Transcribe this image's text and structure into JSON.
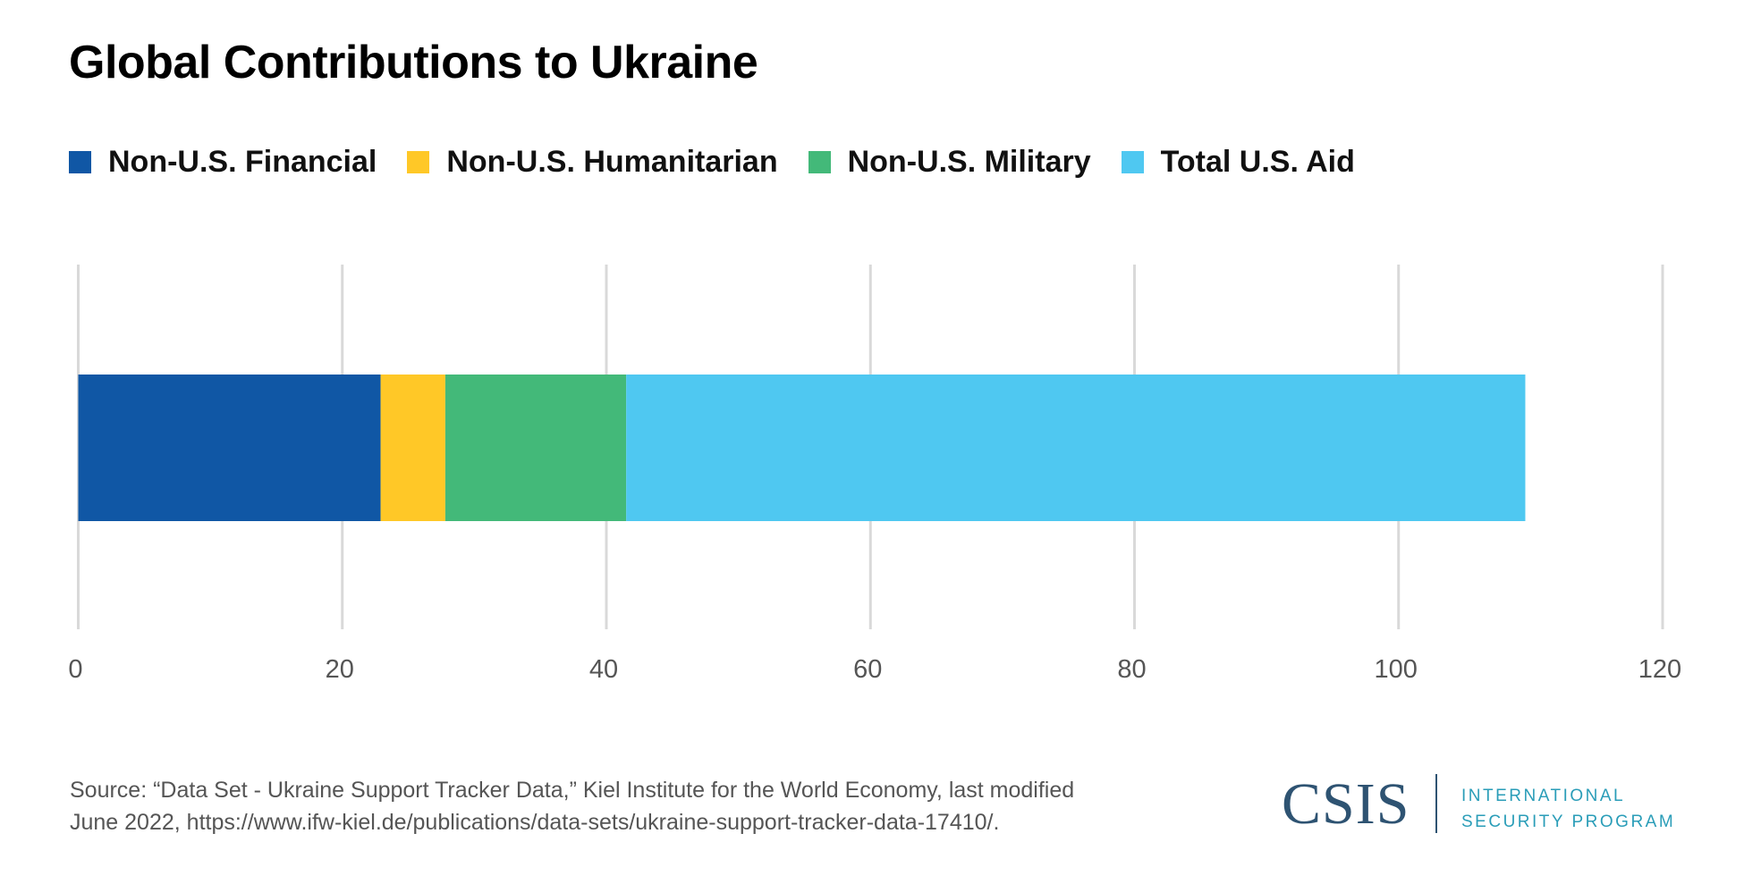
{
  "chart_data": {
    "type": "bar",
    "orientation": "horizontal",
    "stacked": true,
    "title": "Global Contributions to Ukraine",
    "categories": [
      ""
    ],
    "series": [
      {
        "name": "Non-U.S. Financial",
        "values": [
          22.9
        ],
        "color": "#1057a5"
      },
      {
        "name": "Non-U.S. Humanitarian",
        "values": [
          4.9
        ],
        "color": "#ffc827"
      },
      {
        "name": "Non-U.S. Military",
        "values": [
          13.7
        ],
        "color": "#43b979"
      },
      {
        "name": "Total U.S. Aid",
        "values": [
          68.1
        ],
        "color": "#4fc8f1"
      }
    ],
    "xlim": [
      0,
      120
    ],
    "xticks": [
      "0",
      "20",
      "40",
      "60",
      "80",
      "100",
      "120"
    ],
    "grid": true,
    "legend": "top-left"
  },
  "source": {
    "line1": "Source: “Data Set - Ukraine Support Tracker Data,” Kiel Institute for the World Economy, last modified",
    "line2": "June 2022, https://www.ifw-kiel.de/publications/data-sets/ukraine-support-tracker-data-17410/."
  },
  "logo": {
    "name": "CSIS",
    "line1": "INTERNATIONAL",
    "line2": "SECURITY PROGRAM"
  }
}
